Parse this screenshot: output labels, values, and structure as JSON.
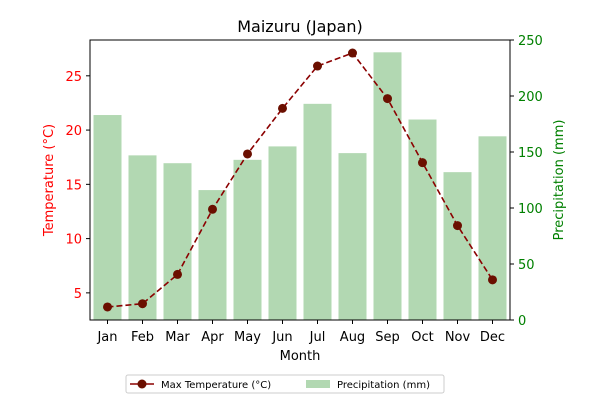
{
  "chart_data": {
    "type": "bar+line",
    "title": "Maizuru (Japan)",
    "xlabel": "Month",
    "categories": [
      "Jan",
      "Feb",
      "Mar",
      "Apr",
      "May",
      "Jun",
      "Jul",
      "Aug",
      "Sep",
      "Oct",
      "Nov",
      "Dec"
    ],
    "series": [
      {
        "name": "Max Temperature (°C)",
        "type": "line",
        "axis": "left",
        "color": "#8b0000",
        "values": [
          3.7,
          4.0,
          6.7,
          12.7,
          17.8,
          22.0,
          25.9,
          27.1,
          22.9,
          17.0,
          11.2,
          6.2
        ]
      },
      {
        "name": "Precipitation (mm)",
        "type": "bar",
        "axis": "right",
        "color": "#b2d8b2",
        "values": [
          183,
          147,
          140,
          116,
          143,
          155,
          193,
          149,
          239,
          179,
          132,
          164
        ]
      }
    ],
    "y_left": {
      "label": "Temperature (°C)",
      "color": "#ff0000",
      "range": [
        2.5,
        28.3
      ],
      "ticks": [
        5,
        10,
        15,
        20,
        25
      ]
    },
    "y_right": {
      "label": "Precipitation (mm)",
      "color": "#008000",
      "range": [
        0,
        250
      ],
      "ticks": [
        0,
        50,
        100,
        150,
        200,
        250
      ]
    },
    "legend_position": "bottom-center",
    "grid": false
  }
}
